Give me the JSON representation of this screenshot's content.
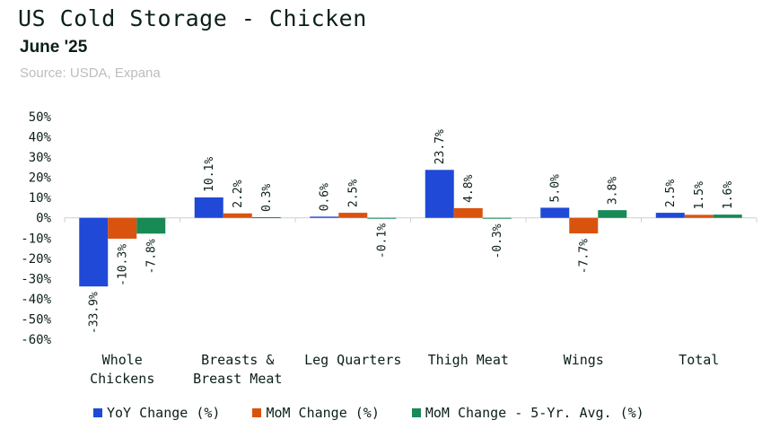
{
  "header": {
    "title": "US Cold Storage - Chicken",
    "subtitle": "June '25",
    "source": "Source: USDA, Expana"
  },
  "chart_data": {
    "type": "bar",
    "categories": [
      [
        "Whole",
        "Chickens"
      ],
      [
        "Breasts &",
        "Breast Meat"
      ],
      [
        "Leg Quarters"
      ],
      [
        "Thigh Meat"
      ],
      [
        "Wings"
      ],
      [
        "Total"
      ]
    ],
    "series": [
      {
        "name": "YoY Change (%)",
        "color": "#1f49d6",
        "values": [
          -33.9,
          10.1,
          0.6,
          23.7,
          5.0,
          2.5
        ],
        "labels": [
          "-33.9%",
          "10.1%",
          "0.6%",
          "23.7%",
          "5.0%",
          "2.5%"
        ]
      },
      {
        "name": "MoM Change (%)",
        "color": "#d9530f",
        "values": [
          -10.3,
          2.2,
          2.5,
          4.8,
          -7.7,
          1.5
        ],
        "labels": [
          "-10.3%",
          "2.2%",
          "2.5%",
          "4.8%",
          "-7.7%",
          "1.5%"
        ]
      },
      {
        "name": "MoM Change - 5-Yr. Avg. (%)",
        "color": "#178a55",
        "values": [
          -7.8,
          0.3,
          -0.1,
          -0.3,
          3.8,
          1.6
        ],
        "labels": [
          "-7.8%",
          "0.3%",
          "-0.1%",
          "-0.3%",
          "3.8%",
          "1.6%"
        ]
      }
    ],
    "yticks": [
      50,
      40,
      30,
      20,
      10,
      0,
      -10,
      -20,
      -30,
      -40,
      -50,
      -60
    ],
    "ytick_labels": [
      "50%",
      "40%",
      "30%",
      "20%",
      "10%",
      "0%",
      "-10%",
      "-20%",
      "-30%",
      "-40%",
      "-50%",
      "-60%"
    ],
    "ylim": [
      -60,
      50
    ],
    "grid": false,
    "legend_position": "bottom"
  }
}
